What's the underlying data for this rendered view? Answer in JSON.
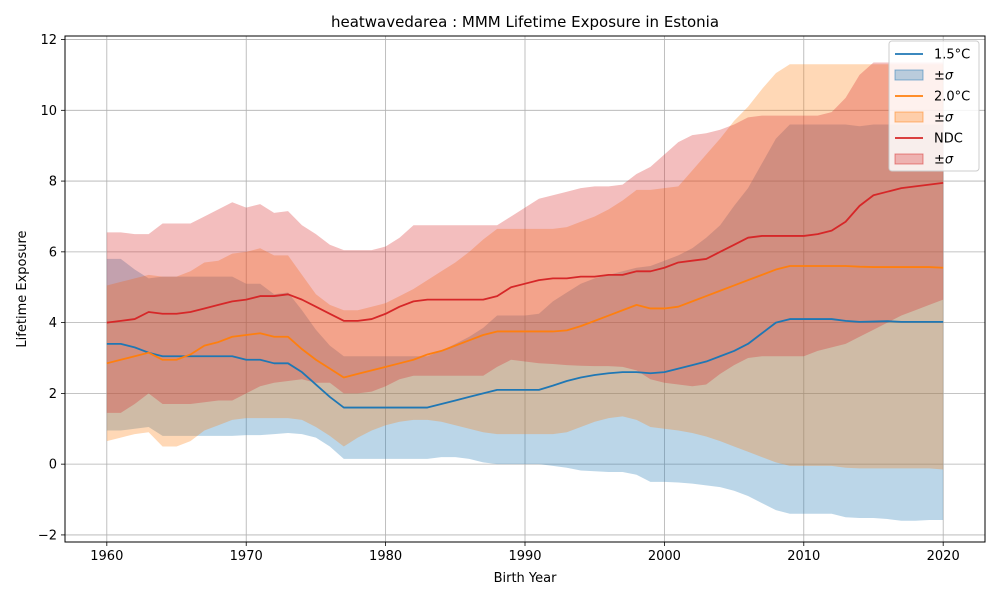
{
  "chart_data": {
    "type": "area",
    "title": "heatwavedarea : MMM Lifetime Exposure in Estonia",
    "xlabel": "Birth Year",
    "ylabel": "Lifetime Exposure",
    "xlim": [
      1957,
      2023
    ],
    "ylim": [
      -2.2,
      12.1
    ],
    "xticks": [
      1960,
      1970,
      1980,
      1990,
      2000,
      2010,
      2020
    ],
    "yticks": [
      -2,
      0,
      2,
      4,
      6,
      8,
      10,
      12
    ],
    "grid": true,
    "legend_position": "top-right",
    "x": [
      1960,
      1961,
      1962,
      1963,
      1964,
      1965,
      1966,
      1967,
      1968,
      1969,
      1970,
      1971,
      1972,
      1973,
      1974,
      1975,
      1976,
      1977,
      1978,
      1979,
      1980,
      1981,
      1982,
      1983,
      1984,
      1985,
      1986,
      1987,
      1988,
      1989,
      1990,
      1991,
      1992,
      1993,
      1994,
      1995,
      1996,
      1997,
      1998,
      1999,
      2000,
      2001,
      2002,
      2003,
      2004,
      2005,
      2006,
      2007,
      2008,
      2009,
      2010,
      2011,
      2012,
      2013,
      2014,
      2015,
      2016,
      2017,
      2018,
      2019,
      2020
    ],
    "series": [
      {
        "name": "1.5°C",
        "band_label": "±σ",
        "color": "#1f77b4",
        "fill": "#1f77b4",
        "fill_opacity": 0.3,
        "values": [
          3.4,
          3.4,
          3.3,
          3.15,
          3.05,
          3.05,
          3.05,
          3.05,
          3.05,
          3.05,
          2.95,
          2.95,
          2.85,
          2.85,
          2.6,
          2.25,
          1.9,
          1.6,
          1.6,
          1.6,
          1.6,
          1.6,
          1.6,
          1.6,
          1.7,
          1.8,
          1.9,
          2.0,
          2.1,
          2.1,
          2.1,
          2.1,
          2.22,
          2.35,
          2.45,
          2.52,
          2.57,
          2.6,
          2.6,
          2.57,
          2.6,
          2.7,
          2.8,
          2.9,
          3.05,
          3.2,
          3.4,
          3.7,
          4.0,
          4.1,
          4.1,
          4.1,
          4.1,
          4.05,
          4.02,
          4.03,
          4.04,
          4.02,
          4.02,
          4.02,
          4.02
        ],
        "upper": [
          5.8,
          5.8,
          5.5,
          5.25,
          5.3,
          5.3,
          5.3,
          5.3,
          5.3,
          5.3,
          5.1,
          5.1,
          4.8,
          4.85,
          4.35,
          3.8,
          3.35,
          3.05,
          3.05,
          3.05,
          3.05,
          3.05,
          3.05,
          3.05,
          3.2,
          3.4,
          3.6,
          3.85,
          4.2,
          4.2,
          4.2,
          4.25,
          4.6,
          4.85,
          5.1,
          5.25,
          5.35,
          5.45,
          5.55,
          5.6,
          5.75,
          5.9,
          6.1,
          6.4,
          6.75,
          7.3,
          7.8,
          8.5,
          9.2,
          9.6,
          9.6,
          9.6,
          9.6,
          9.6,
          9.55,
          9.6,
          9.6,
          9.6,
          9.6,
          9.6,
          9.6
        ],
        "lower": [
          0.95,
          0.95,
          1.0,
          1.05,
          0.8,
          0.8,
          0.8,
          0.8,
          0.8,
          0.8,
          0.82,
          0.82,
          0.85,
          0.88,
          0.85,
          0.75,
          0.5,
          0.15,
          0.15,
          0.15,
          0.15,
          0.15,
          0.15,
          0.15,
          0.2,
          0.2,
          0.15,
          0.05,
          0.0,
          0.0,
          0.0,
          0.0,
          -0.05,
          -0.1,
          -0.18,
          -0.2,
          -0.22,
          -0.22,
          -0.3,
          -0.5,
          -0.5,
          -0.52,
          -0.55,
          -0.6,
          -0.65,
          -0.75,
          -0.9,
          -1.1,
          -1.3,
          -1.4,
          -1.4,
          -1.4,
          -1.4,
          -1.5,
          -1.52,
          -1.52,
          -1.55,
          -1.6,
          -1.6,
          -1.58,
          -1.58
        ]
      },
      {
        "name": "2.0°C",
        "band_label": "±σ",
        "color": "#ff7f0e",
        "fill": "#ff7f0e",
        "fill_opacity": 0.3,
        "values": [
          2.85,
          2.95,
          3.05,
          3.15,
          2.95,
          2.95,
          3.1,
          3.35,
          3.45,
          3.6,
          3.65,
          3.7,
          3.6,
          3.6,
          3.25,
          2.95,
          2.7,
          2.45,
          2.55,
          2.65,
          2.75,
          2.85,
          2.95,
          3.1,
          3.2,
          3.35,
          3.5,
          3.65,
          3.75,
          3.75,
          3.75,
          3.75,
          3.75,
          3.78,
          3.9,
          4.05,
          4.2,
          4.35,
          4.5,
          4.4,
          4.4,
          4.45,
          4.6,
          4.75,
          4.9,
          5.05,
          5.2,
          5.35,
          5.5,
          5.6,
          5.6,
          5.6,
          5.6,
          5.6,
          5.58,
          5.57,
          5.57,
          5.57,
          5.57,
          5.57,
          5.55
        ],
        "upper": [
          5.05,
          5.15,
          5.25,
          5.35,
          5.3,
          5.3,
          5.45,
          5.7,
          5.75,
          5.95,
          6.0,
          6.1,
          5.9,
          5.9,
          5.35,
          4.8,
          4.5,
          4.35,
          4.35,
          4.45,
          4.55,
          4.75,
          4.95,
          5.2,
          5.45,
          5.7,
          6.0,
          6.35,
          6.65,
          6.65,
          6.65,
          6.65,
          6.65,
          6.7,
          6.85,
          7.0,
          7.2,
          7.45,
          7.75,
          7.75,
          7.8,
          7.85,
          8.3,
          8.75,
          9.2,
          9.7,
          10.1,
          10.6,
          11.05,
          11.3,
          11.3,
          11.3,
          11.3,
          11.3,
          11.3,
          11.3,
          11.3,
          11.3,
          11.3,
          11.3,
          11.3
        ],
        "lower": [
          0.65,
          0.75,
          0.85,
          0.9,
          0.5,
          0.5,
          0.65,
          0.95,
          1.1,
          1.25,
          1.3,
          1.3,
          1.3,
          1.3,
          1.25,
          1.05,
          0.8,
          0.5,
          0.75,
          0.95,
          1.1,
          1.2,
          1.25,
          1.25,
          1.2,
          1.1,
          1.0,
          0.9,
          0.85,
          0.85,
          0.85,
          0.85,
          0.85,
          0.9,
          1.05,
          1.2,
          1.3,
          1.35,
          1.25,
          1.05,
          1.0,
          0.95,
          0.88,
          0.78,
          0.65,
          0.5,
          0.35,
          0.2,
          0.05,
          -0.05,
          -0.05,
          -0.05,
          -0.05,
          -0.1,
          -0.12,
          -0.12,
          -0.12,
          -0.12,
          -0.12,
          -0.12,
          -0.15
        ]
      },
      {
        "name": "NDC",
        "band_label": "±σ",
        "color": "#d62728",
        "fill": "#d62728",
        "fill_opacity": 0.3,
        "values": [
          4.0,
          4.05,
          4.1,
          4.3,
          4.25,
          4.25,
          4.3,
          4.4,
          4.5,
          4.6,
          4.65,
          4.75,
          4.75,
          4.8,
          4.65,
          4.45,
          4.25,
          4.05,
          4.05,
          4.1,
          4.25,
          4.45,
          4.6,
          4.65,
          4.65,
          4.65,
          4.65,
          4.65,
          4.75,
          5.0,
          5.1,
          5.2,
          5.25,
          5.25,
          5.3,
          5.3,
          5.35,
          5.35,
          5.45,
          5.45,
          5.55,
          5.7,
          5.75,
          5.8,
          6.0,
          6.2,
          6.4,
          6.45,
          6.45,
          6.45,
          6.45,
          6.5,
          6.6,
          6.85,
          7.3,
          7.6,
          7.7,
          7.8,
          7.85,
          7.9,
          7.95
        ],
        "upper": [
          6.55,
          6.55,
          6.5,
          6.5,
          6.8,
          6.8,
          6.8,
          7.0,
          7.2,
          7.4,
          7.25,
          7.35,
          7.1,
          7.15,
          6.75,
          6.5,
          6.2,
          6.05,
          6.05,
          6.05,
          6.15,
          6.4,
          6.75,
          6.75,
          6.75,
          6.75,
          6.75,
          6.75,
          6.75,
          7.0,
          7.25,
          7.5,
          7.6,
          7.7,
          7.8,
          7.85,
          7.85,
          7.9,
          8.2,
          8.4,
          8.75,
          9.1,
          9.3,
          9.35,
          9.45,
          9.6,
          9.8,
          9.85,
          9.85,
          9.85,
          9.85,
          9.85,
          9.95,
          10.35,
          11.0,
          11.35,
          11.35,
          11.35,
          11.35,
          11.35,
          11.35
        ],
        "lower": [
          1.45,
          1.45,
          1.7,
          2.0,
          1.7,
          1.7,
          1.7,
          1.75,
          1.8,
          1.8,
          2.0,
          2.2,
          2.3,
          2.35,
          2.4,
          2.3,
          2.3,
          2.0,
          2.0,
          2.05,
          2.2,
          2.4,
          2.5,
          2.5,
          2.5,
          2.5,
          2.5,
          2.5,
          2.75,
          2.95,
          2.9,
          2.85,
          2.83,
          2.8,
          2.78,
          2.77,
          2.77,
          2.75,
          2.65,
          2.4,
          2.3,
          2.25,
          2.2,
          2.25,
          2.55,
          2.8,
          3.0,
          3.05,
          3.05,
          3.05,
          3.05,
          3.2,
          3.3,
          3.4,
          3.6,
          3.8,
          4.0,
          4.2,
          4.35,
          4.5,
          4.65
        ]
      }
    ]
  }
}
